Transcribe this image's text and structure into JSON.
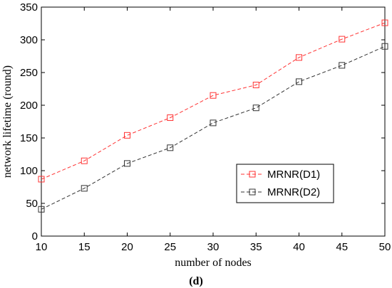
{
  "chart_data": {
    "type": "line",
    "xlabel": "number of nodes",
    "ylabel": "network lifetime (round)",
    "panel_label": "(d)",
    "x": [
      10,
      15,
      20,
      25,
      30,
      35,
      40,
      45,
      50
    ],
    "xlim": [
      10,
      50
    ],
    "ylim": [
      0,
      350
    ],
    "xticks": [
      10,
      15,
      20,
      25,
      30,
      35,
      40,
      45,
      50
    ],
    "yticks": [
      0,
      50,
      100,
      150,
      200,
      250,
      300,
      350
    ],
    "grid": false,
    "legend_position": "center-right",
    "series": [
      {
        "name": "MRNR(D1)",
        "color": "#ff3333",
        "marker": "square",
        "line_style": "dashed",
        "values": [
          87,
          115,
          154,
          181,
          215,
          231,
          273,
          301,
          326
        ]
      },
      {
        "name": "MRNR(D2)",
        "color": "#333333",
        "marker": "square",
        "line_style": "dashed",
        "values": [
          41,
          73,
          111,
          135,
          173,
          196,
          236,
          261,
          290
        ]
      }
    ]
  }
}
